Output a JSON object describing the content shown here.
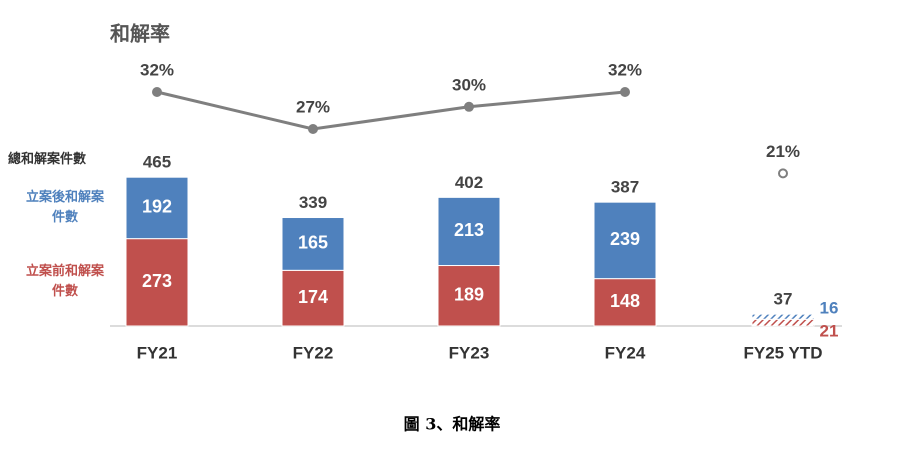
{
  "chart_data": {
    "type": "stacked-bar-line",
    "categories": [
      "FY21",
      "FY22",
      "FY23",
      "FY24",
      "FY25 YTD"
    ],
    "series": [
      {
        "name": "立案前和解案件數",
        "color": "#c0504d",
        "values": [
          273,
          174,
          189,
          148,
          21
        ]
      },
      {
        "name": "立案後和解案件數",
        "color": "#4f81bd",
        "values": [
          192,
          165,
          213,
          239,
          16
        ]
      }
    ],
    "totals_label": "總和解案件數",
    "totals": [
      465,
      339,
      402,
      387,
      37
    ],
    "rate": {
      "name": "和解率",
      "color": "#7f7f7f",
      "values": [
        32,
        27,
        30,
        32,
        21
      ],
      "value_labels": [
        "32%",
        "27%",
        "30%",
        "32%",
        "21%"
      ],
      "hollow_last": true
    },
    "hatch_last": true,
    "caption": "圖 3、和解率"
  }
}
